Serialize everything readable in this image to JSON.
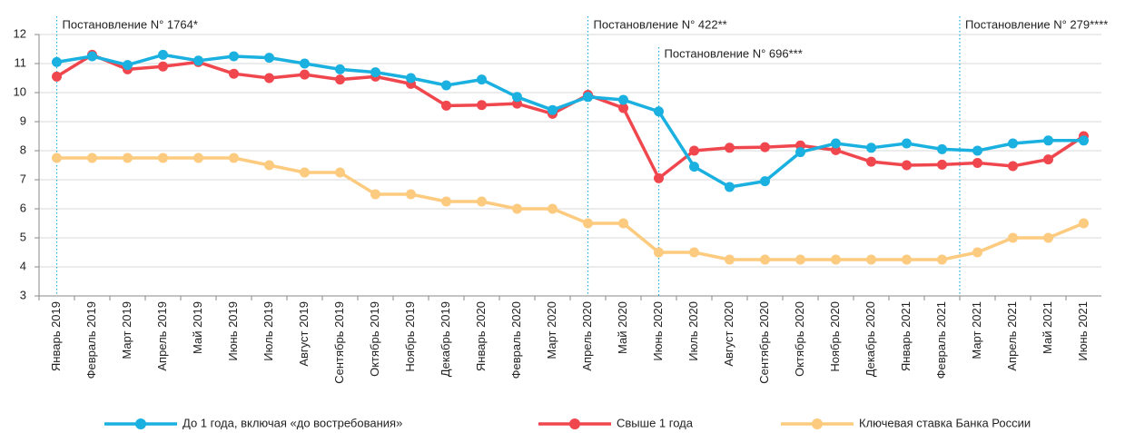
{
  "chart_data": {
    "type": "line",
    "categories": [
      "Январь 2019",
      "Февраль 2019",
      "Март 2019",
      "Апрель 2019",
      "Май 2019",
      "Июнь 2019",
      "Июль 2019",
      "Август 2019",
      "Сентябрь 2019",
      "Октябрь 2019",
      "Ноябрь 2019",
      "Декабрь 2019",
      "Январь 2020",
      "Февраль 2020",
      "Март 2020",
      "Апрель 2020",
      "Май 2020",
      "Июнь 2020",
      "Июль 2020",
      "Август 2020",
      "Сентябрь 2020",
      "Октябрь 2020",
      "Ноябрь 2020",
      "Декабрь 2020",
      "Январь 2021",
      "Февраль 2021",
      "Март 2021",
      "Апрель 2021",
      "Май 2021",
      "Июнь 2021"
    ],
    "series": [
      {
        "name": "До 1 года, включая «до востребования»",
        "color": "#1ab0e0",
        "values": [
          11.05,
          11.25,
          10.95,
          11.3,
          11.1,
          11.25,
          11.2,
          11.0,
          10.8,
          10.7,
          10.5,
          10.25,
          10.45,
          9.85,
          9.4,
          9.85,
          9.75,
          9.35,
          7.45,
          6.75,
          6.95,
          7.95,
          8.25,
          8.1,
          8.25,
          8.05,
          8.0,
          8.25,
          8.35,
          8.35
        ]
      },
      {
        "name": "Свыше 1 года",
        "color": "#f0474f",
        "values": [
          10.55,
          11.3,
          10.8,
          10.9,
          11.05,
          10.65,
          10.5,
          10.62,
          10.45,
          10.55,
          10.3,
          9.55,
          9.57,
          9.62,
          9.27,
          9.92,
          9.47,
          7.05,
          8.0,
          8.1,
          8.12,
          8.18,
          8.02,
          7.62,
          7.5,
          7.52,
          7.58,
          7.47,
          7.7,
          8.5
        ]
      },
      {
        "name": "Ключевая ставка Банка России",
        "color": "#fccb7f",
        "values": [
          7.75,
          7.75,
          7.75,
          7.75,
          7.75,
          7.75,
          7.5,
          7.25,
          7.25,
          6.5,
          6.5,
          6.25,
          6.25,
          6.0,
          6.0,
          5.5,
          5.5,
          4.5,
          4.5,
          4.25,
          4.25,
          4.25,
          4.25,
          4.25,
          4.25,
          4.25,
          4.5,
          5.0,
          5.0,
          5.5
        ]
      }
    ],
    "ylim": [
      3,
      12
    ],
    "yticks": [
      3,
      4,
      5,
      6,
      7,
      8,
      9,
      10,
      11,
      12
    ],
    "grid": true,
    "legend": "bottom",
    "annotations": [
      {
        "text": "Постановление N° 1764*",
        "x": 0,
        "row": 0
      },
      {
        "text": "Постановление N° 422**",
        "x": 15,
        "row": 0
      },
      {
        "text": "Постановление N° 696***",
        "x": 17,
        "row": 1
      },
      {
        "text": "Постановление N° 279****",
        "x": 25.5,
        "row": 0
      }
    ]
  }
}
